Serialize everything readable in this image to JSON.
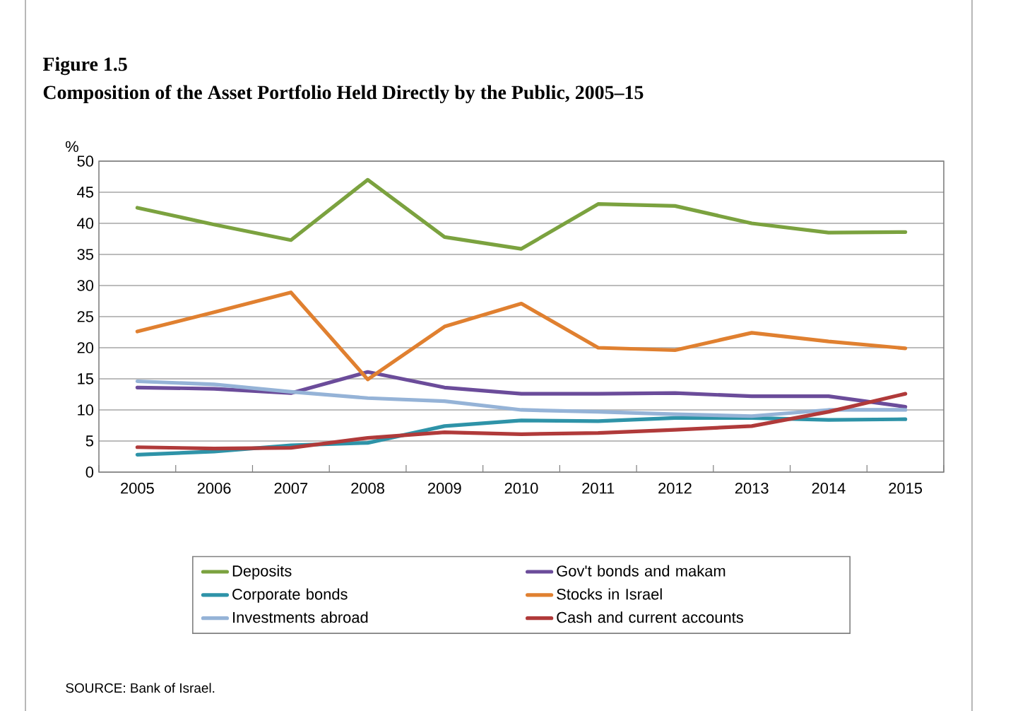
{
  "chart_data": {
    "type": "line",
    "title": "Figure 1.5",
    "subtitle": "Composition of the Asset Portfolio Held Directly by the Public, 2005–15",
    "ylabel": "%",
    "categories": [
      "2005",
      "2006",
      "2007",
      "2008",
      "2009",
      "2010",
      "2011",
      "2012",
      "2013",
      "2014",
      "2015"
    ],
    "ylim": [
      0,
      50
    ],
    "yticks": [
      0,
      5,
      10,
      15,
      20,
      25,
      30,
      35,
      40,
      45,
      50
    ],
    "grid": "y",
    "legend": "bottom",
    "marker": "none",
    "line_style": "solid",
    "series": [
      {
        "name": "Deposits",
        "color": "#7ba23f",
        "values": [
          42.5,
          39.8,
          37.3,
          47,
          37.8,
          35.9,
          43.1,
          42.8,
          40,
          38.5,
          38.6
        ]
      },
      {
        "name": "Gov't bonds and makam",
        "color": "#6b4c9a",
        "values": [
          13.6,
          13.4,
          12.7,
          16.1,
          13.6,
          12.6,
          12.6,
          12.7,
          12.2,
          12.2,
          10.5
        ]
      },
      {
        "name": "Corporate bonds",
        "color": "#2e93a8",
        "values": [
          2.8,
          3.3,
          4.3,
          4.7,
          7.4,
          8.3,
          8.2,
          8.7,
          8.7,
          8.4,
          8.5
        ]
      },
      {
        "name": "Stocks in Israel",
        "color": "#e08030",
        "values": [
          22.6,
          25.7,
          28.9,
          14.9,
          23.4,
          27.1,
          20,
          19.6,
          22.4,
          21,
          19.9
        ]
      },
      {
        "name": "Investments abroad",
        "color": "#95b3d7",
        "values": [
          14.6,
          14.1,
          12.9,
          11.9,
          11.4,
          10.0,
          9.7,
          9.3,
          9.0,
          10.0,
          10.0
        ]
      },
      {
        "name": "Cash and current accounts",
        "color": "#b03a3a",
        "values": [
          4.0,
          3.8,
          3.9,
          5.5,
          6.4,
          6.1,
          6.3,
          6.8,
          7.4,
          9.7,
          12.6
        ]
      }
    ],
    "annotations": [
      "SOURCE: Bank of Israel."
    ]
  }
}
